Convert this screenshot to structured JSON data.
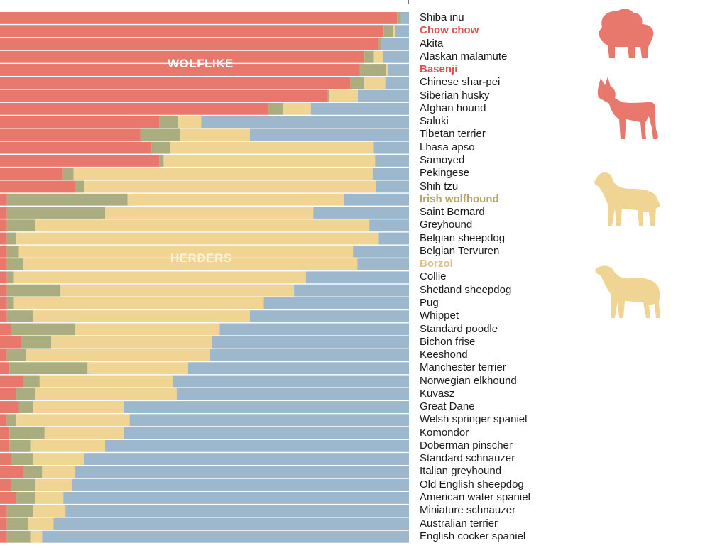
{
  "chart_data": {
    "type": "bar",
    "stacked": true,
    "orientation": "horizontal",
    "normalized": true,
    "group_labels": [
      "WOLFLIKE",
      "HERDERS"
    ],
    "colors": {
      "wolflike": "#e8776c",
      "green": "#a9ad7f",
      "herders": "#efd493",
      "blue": "#9db8cc",
      "separator": "#fbefe9"
    },
    "series_order": [
      "red",
      "green",
      "yellow",
      "blue"
    ],
    "categories": [
      "Shiba inu",
      "Chow chow",
      "Akita",
      "Alaskan malamute",
      "Basenji",
      "Chinese shar-pei",
      "Siberian husky",
      "Afghan hound",
      "Saluki",
      "Tibetan terrier",
      "Lhasa apso",
      "Samoyed",
      "Pekingese",
      "Shih tzu",
      "Irish wolfhound",
      "Saint Bernard",
      "Greyhound",
      "Belgian sheepdog",
      "Belgian Tervuren",
      "Borzoi",
      "Collie",
      "Shetland sheepdog",
      "Pug",
      "Whippet",
      "Standard poodle",
      "Bichon frise",
      "Keeshond",
      "Manchester terrier",
      "Norwegian elkhound",
      "Kuvasz",
      "Great Dane",
      "Welsh springer spaniel",
      "Komondor",
      "Doberman pinscher",
      "Standard schnauzer",
      "Italian greyhound",
      "Old English sheepdog",
      "American water spaniel",
      "Miniature schnauzer",
      "Australian terrier",
      "English cocker spaniel"
    ],
    "highlighted": {
      "Chow chow": "#d9534f",
      "Basenji": "#d9534f",
      "Irish wolfhound": "#b5a56a",
      "Borzoi": "#d9c08a"
    },
    "series": [
      {
        "values": [
          97.1,
          93.8,
          92.6,
          89.1,
          88.0,
          85.7,
          80.0,
          65.7,
          38.9,
          34.3,
          37.1,
          38.9,
          15.4,
          18.3,
          1.7,
          1.7,
          1.7,
          1.7,
          1.7,
          1.7,
          1.7,
          1.7,
          1.7,
          1.7,
          2.9,
          5.1,
          1.7,
          2.3,
          5.7,
          4.0,
          4.6,
          1.7,
          2.3,
          2.3,
          2.9,
          5.7,
          2.9,
          4.0,
          1.7,
          1.7,
          1.7
        ]
      },
      {
        "values": [
          0.9,
          2.3,
          0.6,
          2.3,
          6.3,
          3.4,
          0.6,
          3.4,
          4.6,
          9.7,
          4.6,
          1.1,
          2.6,
          2.3,
          29.5,
          24.0,
          6.9,
          2.3,
          2.9,
          4.0,
          1.7,
          13.1,
          1.7,
          6.3,
          15.4,
          7.4,
          4.6,
          19.1,
          4.0,
          4.6,
          3.4,
          2.3,
          8.6,
          5.1,
          5.1,
          4.6,
          5.7,
          4.6,
          6.3,
          5.1,
          5.7
        ]
      },
      {
        "values": [
          0.0,
          0.6,
          0.0,
          2.3,
          0.6,
          5.1,
          6.9,
          6.9,
          5.7,
          17.1,
          49.7,
          51.7,
          73.1,
          71.4,
          52.9,
          50.9,
          81.7,
          88.6,
          81.7,
          81.7,
          71.4,
          57.1,
          61.1,
          53.1,
          35.4,
          39.4,
          45.1,
          24.6,
          32.6,
          34.6,
          22.3,
          27.7,
          19.4,
          18.3,
          12.6,
          8.0,
          9.1,
          6.9,
          8.0,
          6.3,
          2.9
        ]
      },
      {
        "values": [
          2.0,
          3.3,
          6.8,
          6.3,
          5.1,
          5.8,
          12.5,
          24.0,
          50.8,
          38.9,
          8.6,
          8.3,
          8.9,
          8.0,
          15.9,
          23.4,
          9.7,
          7.4,
          13.7,
          12.6,
          25.2,
          28.1,
          35.5,
          38.9,
          46.3,
          48.1,
          48.6,
          54.0,
          57.7,
          56.8,
          69.7,
          68.3,
          69.7,
          74.3,
          79.4,
          81.7,
          82.3,
          84.5,
          84.0,
          86.9,
          89.7
        ]
      }
    ]
  },
  "icons": [
    "chow-chow-silhouette",
    "basenji-silhouette",
    "irish-wolfhound-silhouette",
    "borzoi-silhouette"
  ]
}
